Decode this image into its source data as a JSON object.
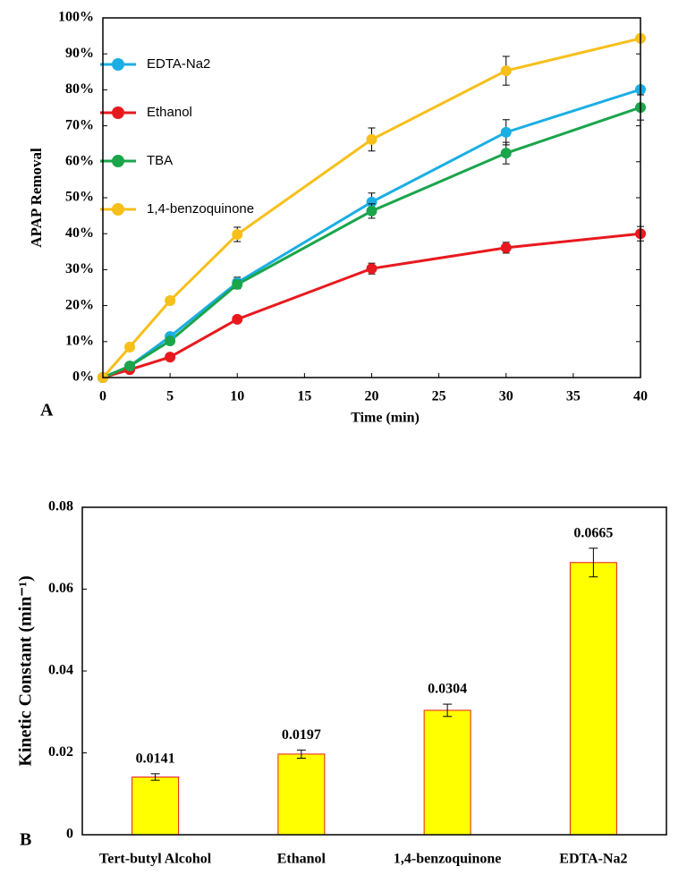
{
  "chart_data": [
    {
      "type": "line",
      "panel_label": "A",
      "x_label": "Time (min)",
      "y_label": "APAP Removal",
      "x": [
        0,
        2,
        5,
        10,
        20,
        30,
        40
      ],
      "xlim": [
        0,
        40
      ],
      "xticks": [
        0,
        5,
        10,
        15,
        20,
        25,
        30,
        35,
        40
      ],
      "ylim": [
        0,
        100
      ],
      "yticks": [
        {
          "value": 0,
          "label": "0%"
        },
        {
          "value": 10,
          "label": "10%"
        },
        {
          "value": 20,
          "label": "20%"
        },
        {
          "value": 30,
          "label": "30%"
        },
        {
          "value": 40,
          "label": "40%"
        },
        {
          "value": 50,
          "label": "50%"
        },
        {
          "value": 60,
          "label": "60%"
        },
        {
          "value": 70,
          "label": "70%"
        },
        {
          "value": 80,
          "label": "80%"
        },
        {
          "value": 90,
          "label": "90%"
        },
        {
          "value": 100,
          "label": "100%"
        }
      ],
      "legend": "upper left",
      "series": [
        {
          "name": "EDTA-Na2",
          "color": "#1aaee4",
          "values": [
            0,
            3.2,
            11.4,
            26.4,
            48.8,
            68.2,
            80.1
          ],
          "errors": [
            0,
            0.5,
            0.8,
            1.5,
            2.5,
            3.5,
            1
          ]
        },
        {
          "name": "Ethanol",
          "color": "#e8191e",
          "values": [
            0,
            2.2,
            5.7,
            16.2,
            30.3,
            36.1,
            40.0
          ],
          "errors": [
            0,
            0.4,
            0.5,
            0.8,
            1.5,
            1.5,
            2
          ]
        },
        {
          "name": "TBA",
          "color": "#1aa54b",
          "values": [
            0,
            3.2,
            10.2,
            25.9,
            46.3,
            62.4,
            75.1
          ],
          "errors": [
            0,
            0.5,
            0.8,
            1.2,
            2,
            3,
            3.5
          ]
        },
        {
          "name": "1,4-benzoquinone",
          "color": "#f7bf1a",
          "values": [
            0,
            8.5,
            21.4,
            39.8,
            66.2,
            85.3,
            94.3
          ],
          "errors": [
            0,
            0.5,
            1,
            2,
            3.2,
            4,
            1
          ]
        }
      ]
    },
    {
      "type": "bar",
      "panel_label": "B",
      "y_label": "Kinetic Constant (min⁻¹)",
      "categories": [
        "Tert-butyl Alcohol",
        "Ethanol",
        "1,4-benzoquinone",
        "EDTA-Na2"
      ],
      "values": [
        0.0141,
        0.0197,
        0.0304,
        0.0665
      ],
      "errors": [
        0.0008,
        0.001,
        0.0015,
        0.0035
      ],
      "color": "#ffff00",
      "edge_color": "#e8191e",
      "ylim": [
        0,
        0.08
      ],
      "yticks": [
        0,
        0.02,
        0.04,
        0.06,
        0.08
      ]
    }
  ]
}
